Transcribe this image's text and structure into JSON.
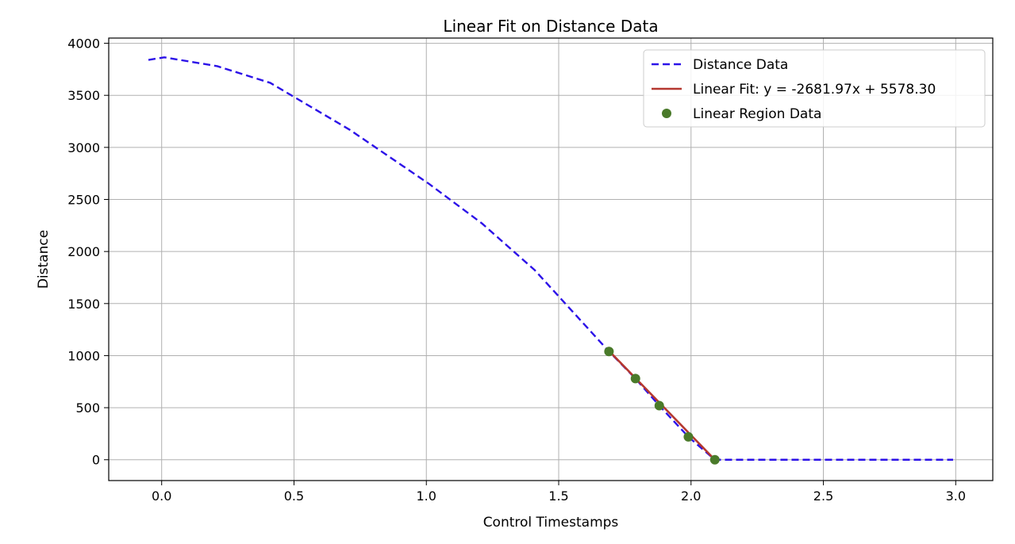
{
  "chart_data": {
    "type": "line",
    "title": "Linear Fit on Distance Data",
    "xlabel": "Control Timestamps",
    "ylabel": "Distance",
    "xlim": [
      -0.2,
      3.14
    ],
    "ylim": [
      -200,
      4050
    ],
    "grid": true,
    "legend_placement": "top-right",
    "x_ticks": [
      0.0,
      0.5,
      1.0,
      1.5,
      2.0,
      2.5,
      3.0
    ],
    "x_tick_labels": [
      "0.0",
      "0.5",
      "1.0",
      "1.5",
      "2.0",
      "2.5",
      "3.0"
    ],
    "y_ticks": [
      0,
      500,
      1000,
      1500,
      2000,
      2500,
      3000,
      3500,
      4000
    ],
    "y_tick_labels": [
      "0",
      "500",
      "1000",
      "1500",
      "2000",
      "2500",
      "3000",
      "3500",
      "4000"
    ],
    "series": [
      {
        "name": "Distance Data",
        "kind": "line",
        "style": "dashed",
        "color": "#2c12e8",
        "x": [
          -0.05,
          0.01,
          0.21,
          0.41,
          0.71,
          1.01,
          1.21,
          1.41,
          1.69,
          1.79,
          1.88,
          1.99,
          2.09,
          2.6,
          2.99
        ],
        "y": [
          3840,
          3865,
          3780,
          3620,
          3170,
          2650,
          2270,
          1820,
          1040,
          780,
          520,
          220,
          0,
          0,
          0
        ]
      },
      {
        "name": "Linear Fit: y = -2681.97x + 5578.30",
        "kind": "line",
        "style": "solid",
        "color": "#b5372f",
        "x": [
          1.69,
          2.09
        ],
        "y": [
          1045.8,
          0
        ]
      },
      {
        "name": "Linear Region Data",
        "kind": "scatter",
        "color": "#4a7a2a",
        "x": [
          1.69,
          1.79,
          1.88,
          1.99,
          2.09
        ],
        "y": [
          1040,
          780,
          520,
          220,
          0
        ]
      }
    ]
  }
}
